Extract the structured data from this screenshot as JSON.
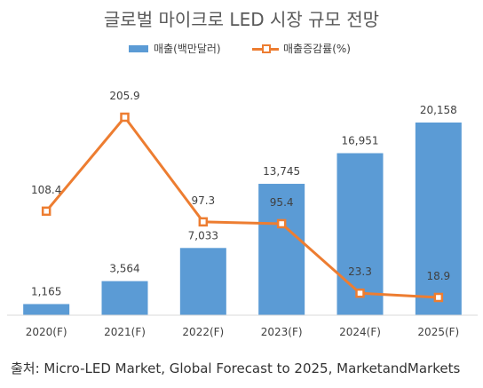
{
  "chart_data": {
    "type": "bar+line",
    "title": "글로벌 마이크로 LED 시장 규모 전망",
    "categories": [
      "2020(F)",
      "2021(F)",
      "2022(F)",
      "2023(F)",
      "2024(F)",
      "2025(F)"
    ],
    "series": [
      {
        "name": "매출(백만달러)",
        "type": "bar",
        "values": [
          1165,
          3564,
          7033,
          13745,
          16951,
          20158
        ],
        "labels": [
          "1,165",
          "3,564",
          "7,033",
          "13,745",
          "16,951",
          "20,158"
        ]
      },
      {
        "name": "매출증감률(%)",
        "type": "line",
        "values": [
          108.4,
          205.9,
          97.3,
          95.4,
          23.3,
          18.9
        ],
        "labels": [
          "108.4",
          "205.9",
          "97.3",
          "95.4",
          "23.3",
          "18.9"
        ]
      }
    ],
    "legend_position": "top",
    "grid": false,
    "colors": {
      "bar": "#5b9bd5",
      "line": "#ed7d31"
    }
  },
  "source": "출처: Micro-LED Market, Global Forecast to 2025, MarketandMarkets"
}
